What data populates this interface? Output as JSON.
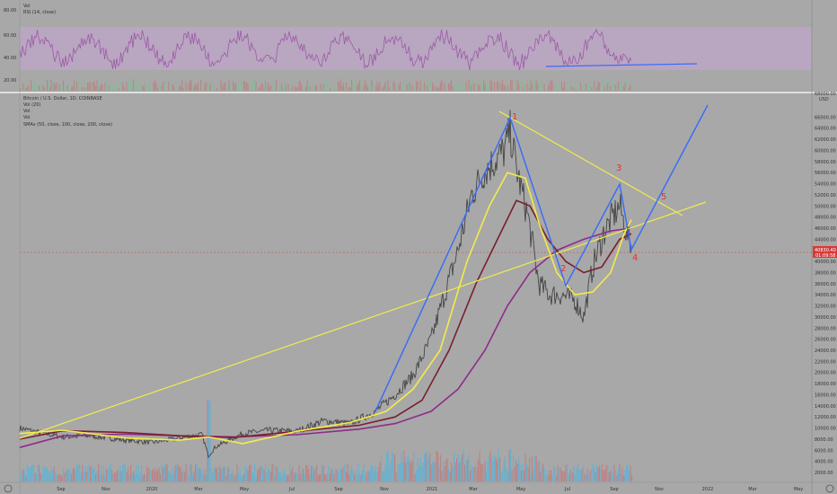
{
  "rsi_panel": {
    "legend": [
      "Vol",
      "RSI (14, close)"
    ],
    "ticks": [
      "80.00",
      "60.00",
      "40.00",
      "20.00"
    ]
  },
  "main_panel": {
    "legend": [
      "Bitcoin / U.S. Dollar, 1D, COINBASE",
      "Vol (20)",
      "Vol",
      "Vol",
      "SMAs (50, close, 100, close, 200, close)"
    ],
    "price_axis_header": [
      "68000.00",
      "USD"
    ],
    "current_price": "40830.40",
    "countdown": "01:09:58"
  },
  "chart_data": {
    "type": "line",
    "y_ticks": [
      68000,
      66000,
      64000,
      62000,
      60000,
      58000,
      56000,
      54000,
      52000,
      50000,
      48000,
      46000,
      44000,
      42000,
      40000,
      38000,
      36000,
      34000,
      32000,
      30000,
      28000,
      26000,
      24000,
      22000,
      20000,
      18000,
      16000,
      14000,
      12000,
      10000,
      8000,
      6000,
      4000,
      2000
    ],
    "x_ticks": [
      "Sep",
      "Nov",
      "2020",
      "Mar",
      "May",
      "Jul",
      "Sep",
      "Nov",
      "2021",
      "Mar",
      "May",
      "Jul",
      "Sep",
      "Nov",
      "2022",
      "Mar",
      "May"
    ],
    "wave_labels": [
      "1",
      "2",
      "3",
      "4",
      "5"
    ],
    "current_price": 40830.4,
    "rsi_ylim": [
      20,
      80
    ],
    "colors": {
      "price": "#444444",
      "sma50": "#f2ec4a",
      "sma100": "#7a1f2e",
      "sma200": "#8f2b8a",
      "trend_blue": "#3b6ef5",
      "triangle_yellow": "#f2ec4a",
      "wave_red": "#e03434",
      "rsi_line": "#9c5aa6",
      "rsi_band": "#c7a4d6",
      "volume": "#5bb3d8",
      "price_tag": "#d63a3a"
    }
  }
}
